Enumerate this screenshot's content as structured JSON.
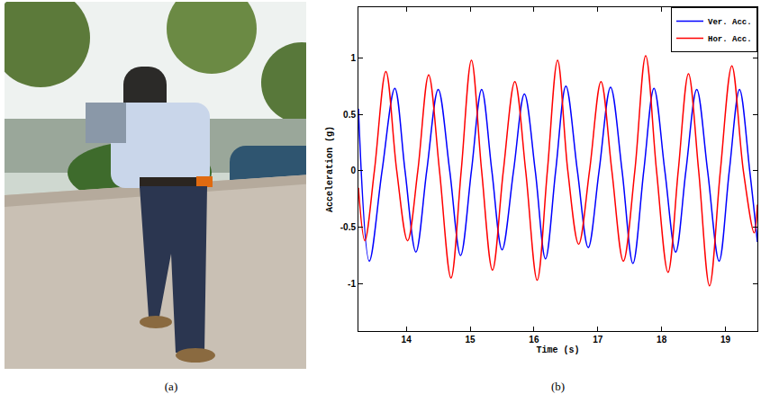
{
  "photo": {
    "caption": "(a)"
  },
  "chart_data": {
    "type": "line",
    "caption": "(b)",
    "x_label": "Time (s)",
    "y_label": "Acceleration (g)",
    "xlim": [
      13.25,
      19.5
    ],
    "xticks": [
      14,
      15,
      16,
      17,
      18,
      19
    ],
    "ylim": [
      -1.42,
      1.45
    ],
    "yticks": [
      -1,
      -0.5,
      0,
      0.5,
      1
    ],
    "grid": false,
    "legend": "top right",
    "series": [
      {
        "name": "Ver. Acc.",
        "color": "#0000ff",
        "line_style": "solid",
        "x": [
          13.25,
          13.42,
          13.62,
          13.82,
          13.98,
          14.15,
          14.32,
          14.5,
          14.68,
          14.85,
          15.02,
          15.18,
          15.34,
          15.5,
          15.68,
          15.85,
          16.02,
          16.18,
          16.34,
          16.5,
          16.68,
          16.85,
          17.02,
          17.2,
          17.38,
          17.55,
          17.72,
          17.88,
          18.05,
          18.22,
          18.38,
          18.55,
          18.72,
          18.9,
          19.06,
          19.22,
          19.38,
          19.5
        ],
        "values": [
          0.55,
          -0.8,
          0,
          0.73,
          0,
          -0.72,
          0,
          0.72,
          0,
          -0.75,
          0,
          0.72,
          0,
          -0.7,
          0,
          0.68,
          0,
          -0.78,
          0,
          0.75,
          0,
          -0.68,
          0,
          0.74,
          0,
          -0.82,
          0,
          0.73,
          0,
          -0.72,
          0,
          0.72,
          0,
          -0.8,
          0,
          0.72,
          0,
          -0.63
        ]
      },
      {
        "name": "Hor. Acc.",
        "color": "#ff0000",
        "line_style": "solid",
        "x": [
          13.25,
          13.35,
          13.5,
          13.68,
          13.85,
          14.02,
          14.18,
          14.35,
          14.52,
          14.7,
          14.86,
          15.02,
          15.18,
          15.35,
          15.52,
          15.7,
          15.87,
          16.05,
          16.21,
          16.37,
          16.53,
          16.7,
          16.87,
          17.05,
          17.22,
          17.4,
          17.58,
          17.75,
          17.92,
          18.1,
          18.26,
          18.42,
          18.58,
          18.75,
          18.92,
          19.1,
          19.28,
          19.45,
          19.5
        ],
        "values": [
          -0.15,
          -0.62,
          0,
          0.88,
          0,
          -0.62,
          0,
          0.85,
          0,
          -0.95,
          0,
          0.98,
          0,
          -0.88,
          0,
          0.79,
          0,
          -0.97,
          0,
          0.98,
          0,
          -0.65,
          0,
          0.79,
          0,
          -0.8,
          0,
          1.02,
          0,
          -0.9,
          0,
          0.86,
          0,
          -1.02,
          0,
          0.93,
          0,
          -0.55,
          -0.3
        ]
      }
    ]
  }
}
